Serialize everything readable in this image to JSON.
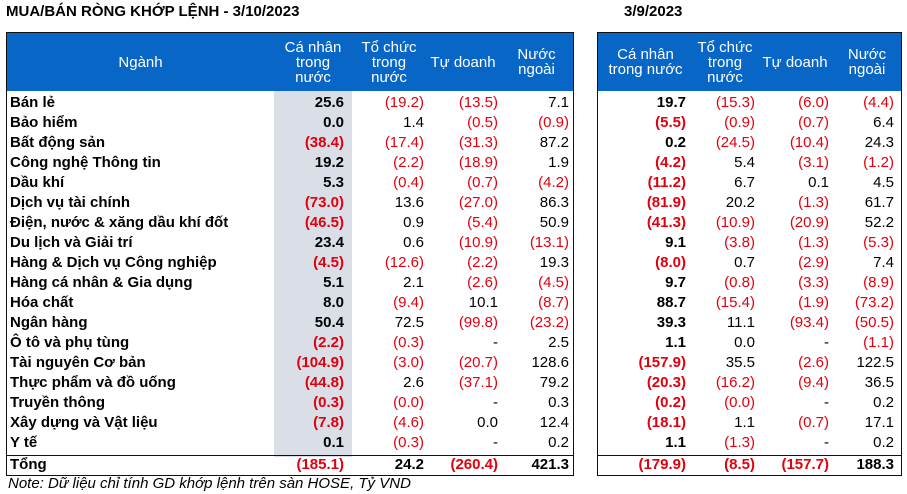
{
  "title_left": "MUA/BÁN RÒNG KHỚP LỆNH - 3/10/2023",
  "title_right": "3/9/2023",
  "headers_left": [
    "Ngành",
    "Cá nhân\ntrong\nnước",
    "Tổ chức\ntrong\nnước",
    "Tự doanh",
    "Nước\nngoài"
  ],
  "headers_right": [
    "Cá nhân\ntrong nước",
    "Tổ chức\ntrong\nnước",
    "Tự doanh",
    "Nước\nngoài"
  ],
  "rows": [
    {
      "sector": "Bán lẻ",
      "left": [
        "25.6",
        "(19.2)",
        "(13.5)",
        "7.1"
      ],
      "right": [
        "19.7",
        "(15.3)",
        "(6.0)",
        "(4.4)"
      ]
    },
    {
      "sector": "Bảo hiểm",
      "left": [
        "0.0",
        "1.4",
        "(0.5)",
        "(0.9)"
      ],
      "right": [
        "(5.5)",
        "(0.9)",
        "(0.7)",
        "6.4"
      ]
    },
    {
      "sector": "Bất động sản",
      "left": [
        "(38.4)",
        "(17.4)",
        "(31.3)",
        "87.2"
      ],
      "right": [
        "0.2",
        "(24.5)",
        "(10.4)",
        "24.3"
      ]
    },
    {
      "sector": "Công nghệ Thông tin",
      "left": [
        "19.2",
        "(2.2)",
        "(18.9)",
        "1.9"
      ],
      "right": [
        "(4.2)",
        "5.4",
        "(3.1)",
        "(1.2)"
      ]
    },
    {
      "sector": "Dầu khí",
      "left": [
        "5.3",
        "(0.4)",
        "(0.7)",
        "(4.2)"
      ],
      "right": [
        "(11.2)",
        "6.7",
        "0.1",
        "4.5"
      ]
    },
    {
      "sector": "Dịch vụ tài chính",
      "left": [
        "(73.0)",
        "13.6",
        "(27.0)",
        "86.3"
      ],
      "right": [
        "(81.9)",
        "20.2",
        "(1.3)",
        "61.7"
      ]
    },
    {
      "sector": "Điện, nước & xăng dầu khí đốt",
      "left": [
        "(46.5)",
        "0.9",
        "(5.4)",
        "50.9"
      ],
      "right": [
        "(41.3)",
        "(10.9)",
        "(20.9)",
        "52.2"
      ]
    },
    {
      "sector": "Du lịch và Giải trí",
      "left": [
        "23.4",
        "0.6",
        "(10.9)",
        "(13.1)"
      ],
      "right": [
        "9.1",
        "(3.8)",
        "(1.3)",
        "(5.3)"
      ]
    },
    {
      "sector": "Hàng & Dịch vụ Công nghiệp",
      "left": [
        "(4.5)",
        "(12.6)",
        "(2.2)",
        "19.3"
      ],
      "right": [
        "(8.0)",
        "0.7",
        "(2.9)",
        "7.4"
      ]
    },
    {
      "sector": "Hàng cá nhân & Gia dụng",
      "left": [
        "5.1",
        "2.1",
        "(2.6)",
        "(4.5)"
      ],
      "right": [
        "9.7",
        "(0.8)",
        "(3.3)",
        "(8.9)"
      ]
    },
    {
      "sector": "Hóa chất",
      "left": [
        "8.0",
        "(9.4)",
        "10.1",
        "(8.7)"
      ],
      "right": [
        "88.7",
        "(15.4)",
        "(1.9)",
        "(73.2)"
      ]
    },
    {
      "sector": "Ngân hàng",
      "left": [
        "50.4",
        "72.5",
        "(99.8)",
        "(23.2)"
      ],
      "right": [
        "39.3",
        "11.1",
        "(93.4)",
        "(50.5)"
      ]
    },
    {
      "sector": "Ô tô và phụ tùng",
      "left": [
        "(2.2)",
        "(0.3)",
        "-",
        "2.5"
      ],
      "right": [
        "1.1",
        "0.0",
        "-",
        "(1.1)"
      ]
    },
    {
      "sector": "Tài nguyên Cơ bản",
      "left": [
        "(104.9)",
        "(3.0)",
        "(20.7)",
        "128.6"
      ],
      "right": [
        "(157.9)",
        "35.5",
        "(2.6)",
        "122.5"
      ]
    },
    {
      "sector": "Thực phẩm và đồ uống",
      "left": [
        "(44.8)",
        "2.6",
        "(37.1)",
        "79.2"
      ],
      "right": [
        "(20.3)",
        "(16.2)",
        "(9.4)",
        "36.5"
      ]
    },
    {
      "sector": "Truyền thông",
      "left": [
        "(0.3)",
        "(0.0)",
        "-",
        "0.3"
      ],
      "right": [
        "(0.2)",
        "(0.0)",
        "-",
        "0.2"
      ]
    },
    {
      "sector": "Xây dựng và Vật liệu",
      "left": [
        "(7.8)",
        "(4.6)",
        "0.0",
        "12.4"
      ],
      "right": [
        "(18.1)",
        "1.1",
        "(0.7)",
        "17.1"
      ]
    },
    {
      "sector": "Y tế",
      "left": [
        "0.1",
        "(0.3)",
        "-",
        "0.2"
      ],
      "right": [
        "1.1",
        "(1.3)",
        "-",
        "0.2"
      ]
    },
    {
      "sector": "Tổng",
      "left": [
        "(185.1)",
        "24.2",
        "(260.4)",
        "421.3"
      ],
      "right": [
        "(179.9)",
        "(8.5)",
        "(157.7)",
        "188.3"
      ]
    }
  ],
  "note": "Note: Dữ liệu chỉ tính GD khớp lệnh trên sàn HOSE, Tỷ VND",
  "colors": {
    "header_bg": "#0866c6",
    "header_text": "#ffffff",
    "negative": "#e0000e",
    "shade": "#dadee7"
  }
}
